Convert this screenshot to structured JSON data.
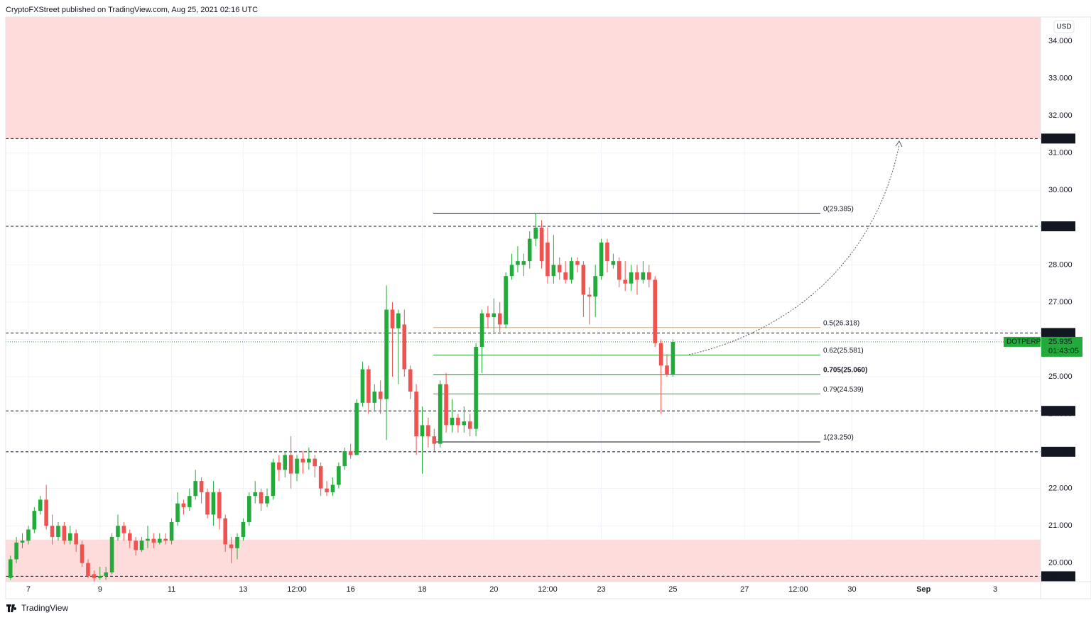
{
  "header": "CryptoFXStreet published on TradingView.com, Aug 25, 2021 02:16 UTC",
  "brand": "TradingView",
  "chart_data": {
    "type": "candlestick",
    "currency": "USD",
    "up_color": "#22ab3a",
    "down_color": "#ef5350",
    "grid": true,
    "xlim": [
      -0.8,
      172.6
    ],
    "ylim": [
      19.5,
      34.65
    ],
    "xticks": [
      {
        "value": 3,
        "label": "7"
      },
      {
        "value": 15,
        "label": "9"
      },
      {
        "value": 27,
        "label": "11"
      },
      {
        "value": 39,
        "label": "13"
      },
      {
        "value": 48,
        "label": "12:00"
      },
      {
        "value": 57,
        "label": "16"
      },
      {
        "value": 69,
        "label": "18"
      },
      {
        "value": 81,
        "label": "20"
      },
      {
        "value": 90,
        "label": "12:00"
      },
      {
        "value": 99,
        "label": "23"
      },
      {
        "value": 111,
        "label": "25"
      },
      {
        "value": 123,
        "label": "27"
      },
      {
        "value": 132,
        "label": "12:00"
      },
      {
        "value": 141,
        "label": "30"
      },
      {
        "value": 153,
        "label": "Sep"
      },
      {
        "value": 165,
        "label": "3"
      }
    ],
    "yticks": [
      {
        "value": 20,
        "label": "20.000"
      },
      {
        "value": 21,
        "label": "21.000"
      },
      {
        "value": 22,
        "label": "22.000"
      },
      {
        "value": 23,
        "label": "23.000"
      },
      {
        "value": 24,
        "label": "24.000"
      },
      {
        "value": 25,
        "label": "25.000"
      },
      {
        "value": 26,
        "label": "26.000"
      },
      {
        "value": 27,
        "label": "27.000"
      },
      {
        "value": 28,
        "label": "28.000"
      },
      {
        "value": 29,
        "label": "29.000"
      },
      {
        "value": 30,
        "label": "30.000"
      },
      {
        "value": 31,
        "label": "31.000"
      },
      {
        "value": 32,
        "label": "32.000"
      },
      {
        "value": 33,
        "label": "33.000"
      },
      {
        "value": 34,
        "label": "34.000"
      }
    ],
    "zones": [
      {
        "low": 31.389,
        "color": "#ffdcdc"
      },
      {
        "high": 20.63,
        "color": "#ffdcdc"
      }
    ],
    "levels": [
      31.389,
      29.035,
      26.173,
      24.083,
      22.986,
      19.645
    ],
    "fib": [
      {
        "label": "0(29.385)",
        "price": 29.385,
        "color": "#131722"
      },
      {
        "label": "0.5(26.318)",
        "price": 26.318,
        "color": "#f7a13a"
      },
      {
        "label": "0.62(25.581)",
        "price": 25.581,
        "color": "#43a047"
      },
      {
        "label": "0.705(25.060)",
        "price": 25.06,
        "color": "#2e7d32"
      },
      {
        "label": "0.79(24.539)",
        "price": 24.539,
        "color": "#43a047"
      },
      {
        "label": "1(23.250)",
        "price": 23.25,
        "color": "#131722"
      }
    ],
    "last_price": {
      "symbol": "DOTPERP",
      "value": 25.935,
      "countdown": "01:43:05",
      "color": "#22ab3a"
    },
    "open": [
      19.6,
      20.1,
      20.55,
      20.6,
      20.9,
      21.4,
      21.7,
      21.0,
      20.7,
      21.0,
      20.6,
      20.8,
      20.5,
      20.0,
      19.7,
      19.6,
      19.65,
      19.75,
      20.7,
      21.0,
      20.8,
      20.6,
      20.35,
      20.6,
      20.65,
      20.55,
      20.65,
      20.6,
      21.1,
      21.6,
      21.5,
      21.8,
      22.2,
      21.9,
      21.3,
      21.9,
      21.2,
      20.5,
      20.4,
      20.7,
      21.1,
      21.8,
      21.9,
      21.6,
      21.8,
      22.7,
      22.5,
      22.9,
      22.4,
      22.8,
      22.7,
      22.8,
      22.6,
      22.0,
      21.9,
      22.1,
      22.6,
      23.0,
      22.9,
      24.3,
      25.2,
      24.3,
      24.6,
      24.4,
      26.8,
      26.3,
      26.4,
      25.2,
      24.6,
      23.4,
      23.7,
      23.4,
      23.2,
      24.8,
      23.7,
      23.9,
      23.7,
      23.8,
      23.6,
      25.8,
      26.7,
      26.6,
      26.7,
      26.4,
      27.7,
      28.0,
      28.0,
      28.1,
      28.7,
      29.0,
      28.6,
      27.7,
      28.0,
      27.8,
      27.6,
      28.1,
      28.0,
      27.2,
      27.15,
      27.7,
      28.6,
      28.0,
      28.1,
      27.6,
      27.5,
      27.8,
      27.6,
      27.8,
      27.6,
      25.9,
      25.3,
      25.06
    ],
    "high": [
      20.2,
      20.7,
      20.8,
      21.0,
      21.5,
      21.8,
      22.1,
      21.3,
      21.1,
      21.1,
      21.0,
      20.9,
      20.6,
      20.1,
      19.8,
      19.9,
      19.9,
      20.8,
      21.3,
      21.1,
      20.9,
      20.7,
      20.7,
      21.0,
      20.8,
      20.8,
      20.8,
      21.2,
      21.9,
      21.7,
      22.0,
      22.5,
      22.3,
      22.0,
      22.2,
      22.0,
      21.3,
      20.7,
      20.8,
      21.2,
      21.9,
      22.2,
      22.0,
      22.0,
      22.8,
      22.9,
      23.0,
      23.4,
      22.9,
      23.0,
      23.1,
      22.9,
      22.7,
      22.2,
      22.3,
      22.7,
      23.1,
      23.2,
      24.4,
      25.4,
      25.3,
      24.8,
      24.9,
      27.45,
      27.0,
      26.8,
      26.8,
      25.3,
      24.8,
      24.2,
      23.9,
      23.6,
      24.9,
      25.1,
      24.4,
      24.0,
      24.2,
      24.0,
      25.9,
      26.8,
      26.9,
      27.1,
      27.0,
      27.8,
      28.3,
      28.5,
      28.3,
      28.9,
      29.4,
      29.2,
      29.0,
      28.8,
      28.2,
      28.1,
      28.2,
      28.2,
      28.1,
      27.4,
      28.0,
      28.7,
      28.7,
      28.3,
      28.2,
      28.1,
      28.0,
      28.0,
      28.1,
      28.0,
      27.7,
      26.0,
      25.6,
      26.0
    ],
    "low": [
      19.55,
      20.0,
      20.4,
      20.5,
      20.8,
      21.3,
      20.9,
      20.5,
      20.6,
      20.5,
      20.5,
      20.3,
      19.9,
      19.6,
      19.5,
      19.55,
      19.55,
      19.7,
      20.6,
      20.6,
      20.4,
      20.2,
      20.3,
      20.4,
      20.4,
      20.5,
      20.5,
      20.5,
      21.0,
      21.3,
      21.4,
      21.7,
      21.6,
      21.2,
      21.0,
      20.9,
      20.3,
      20.0,
      20.1,
      20.6,
      21.0,
      21.6,
      21.4,
      21.5,
      21.7,
      22.2,
      22.3,
      22.0,
      22.2,
      22.4,
      22.5,
      22.3,
      21.8,
      21.8,
      21.8,
      22.0,
      22.5,
      22.8,
      22.9,
      24.2,
      24.0,
      24.1,
      24.0,
      23.3,
      25.0,
      24.8,
      25.0,
      24.4,
      22.9,
      22.4,
      23.1,
      23.0,
      23.1,
      23.5,
      23.5,
      23.5,
      23.5,
      23.4,
      23.4,
      25.1,
      26.3,
      26.2,
      26.2,
      26.3,
      27.6,
      27.8,
      27.7,
      27.9,
      28.5,
      27.9,
      27.5,
      27.5,
      27.6,
      27.5,
      27.5,
      27.8,
      26.6,
      26.4,
      26.6,
      27.6,
      27.8,
      27.9,
      27.4,
      27.3,
      27.3,
      27.2,
      27.5,
      27.4,
      25.8,
      24.0,
      25.0,
      25.0
    ],
    "close": [
      20.1,
      20.55,
      20.6,
      20.9,
      21.4,
      21.7,
      21.0,
      20.7,
      21.0,
      20.6,
      20.8,
      20.5,
      20.0,
      19.65,
      19.6,
      19.65,
      19.75,
      20.7,
      21.0,
      20.8,
      20.6,
      20.35,
      20.6,
      20.65,
      20.55,
      20.65,
      20.6,
      21.1,
      21.6,
      21.5,
      21.8,
      22.2,
      21.9,
      21.3,
      21.9,
      21.2,
      20.5,
      20.4,
      20.7,
      21.1,
      21.8,
      21.9,
      21.6,
      21.8,
      22.7,
      22.5,
      22.9,
      22.4,
      22.8,
      22.7,
      22.8,
      22.6,
      22.0,
      21.9,
      22.1,
      22.6,
      23.0,
      22.9,
      24.3,
      25.2,
      24.3,
      24.6,
      24.4,
      26.8,
      26.3,
      26.7,
      25.2,
      24.6,
      23.4,
      23.7,
      23.4,
      23.2,
      24.8,
      23.7,
      23.9,
      23.7,
      23.8,
      23.6,
      25.8,
      26.7,
      26.6,
      26.7,
      26.4,
      27.7,
      28.0,
      28.1,
      28.1,
      28.7,
      29.0,
      28.1,
      27.7,
      28.0,
      27.8,
      27.6,
      28.1,
      28.0,
      27.2,
      27.15,
      27.7,
      28.6,
      28.1,
      28.1,
      27.6,
      27.5,
      27.8,
      27.6,
      27.8,
      27.6,
      25.9,
      25.3,
      25.06,
      25.935
    ]
  }
}
